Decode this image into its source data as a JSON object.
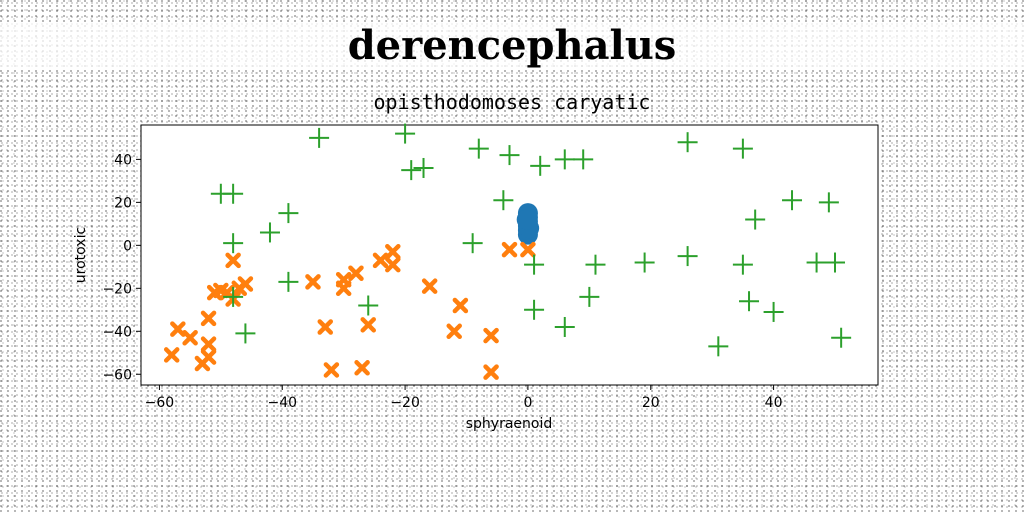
{
  "chart_data": {
    "type": "scatter",
    "title": "derencephalus",
    "subtitle": "opisthodomoses caryatic",
    "xlabel": "sphyraenoid",
    "ylabel": "urotoxic",
    "xlim": [
      -63,
      57
    ],
    "ylim": [
      -65,
      56
    ],
    "xticks": [
      -60,
      -40,
      -20,
      0,
      20,
      40
    ],
    "yticks": [
      -60,
      -40,
      -20,
      0,
      20,
      40
    ],
    "grid": false,
    "series": [
      {
        "marker": "circle",
        "color": "#1f77b4",
        "x": [
          0,
          0,
          0,
          0,
          0,
          0,
          0.2,
          -0.2
        ],
        "y": [
          5,
          7,
          9,
          11,
          13,
          15,
          8,
          12
        ]
      },
      {
        "marker": "x",
        "color": "#ff7f0e",
        "x": [
          -58,
          -57,
          -55,
          -53,
          -52,
          -52,
          -52,
          -51,
          -50,
          -49,
          -48,
          -48,
          -47,
          -46,
          -35,
          -33,
          -32,
          -30,
          -30,
          -28,
          -27,
          -26,
          -24,
          -22,
          -22,
          -16,
          -12,
          -11,
          -6,
          -6,
          -3,
          0
        ],
        "y": [
          -51,
          -39,
          -43,
          -55,
          -52,
          -46,
          -34,
          -22,
          -21,
          -22,
          -25,
          -7,
          -20,
          -18,
          -17,
          -38,
          -58,
          -20,
          -16,
          -13,
          -57,
          -37,
          -7,
          -9,
          -3,
          -19,
          -40,
          -28,
          -59,
          -42,
          -2,
          -2
        ],
        "note_unused": null
      },
      {
        "marker": "plus",
        "color": "#2ca02c",
        "x": [
          -50,
          -48,
          -48,
          -48,
          -46,
          -42,
          -39,
          -39,
          -34,
          -26,
          -20,
          -19,
          -17,
          -9,
          -8,
          -4,
          -3,
          1,
          1,
          2,
          6,
          6,
          9,
          10,
          11,
          19,
          26,
          26,
          31,
          35,
          35,
          36,
          37,
          40,
          43,
          47,
          49,
          50,
          51
        ],
        "y": [
          24,
          24,
          1,
          -24,
          -41,
          6,
          15,
          -17,
          50,
          -28,
          52,
          35,
          36,
          1,
          45,
          21,
          42,
          -9,
          -30,
          37,
          40,
          -38,
          40,
          -24,
          -9,
          -8,
          48,
          -5,
          -47,
          45,
          -9,
          -26,
          12,
          -31,
          21,
          -8,
          20,
          -8,
          -43
        ]
      }
    ]
  }
}
